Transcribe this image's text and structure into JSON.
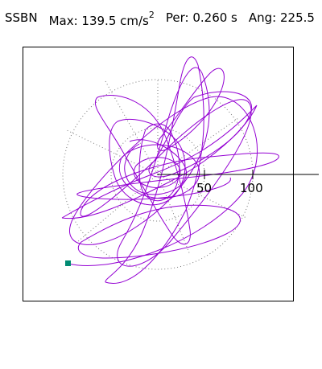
{
  "header": {
    "station": "SSBN",
    "max_label": "Max:",
    "max_value": "139.5 cm/s",
    "max_unit_exponent": "2",
    "period_label": "Per:",
    "period_value": "0.260 s",
    "angle_label": "Ang: 225.5"
  },
  "plot": {
    "radial_ticks": [
      "50",
      "100"
    ],
    "trace_color": "#9400d3",
    "marker_color": "#008b73",
    "grid_color": "#777777"
  }
}
